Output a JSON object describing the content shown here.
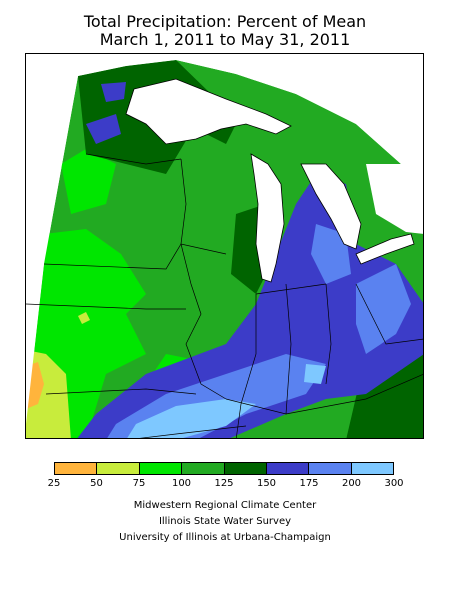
{
  "title": {
    "line1": "Total Precipitation: Percent of Mean",
    "line2": "March 1, 2011 to May 31, 2011"
  },
  "legend": {
    "colors": [
      "#ffb43c",
      "#c8ec3c",
      "#00e600",
      "#22aa22",
      "#006400",
      "#3c3cc8",
      "#5a82f0",
      "#7ec8ff"
    ],
    "ticks": [
      "25",
      "50",
      "75",
      "100",
      "125",
      "150",
      "175",
      "200",
      "300"
    ]
  },
  "credits": {
    "line1": "Midwestern Regional Climate Center",
    "line2": "Illinois State Water Survey",
    "line3": "University of Illinois at Urbana-Champaign"
  }
}
